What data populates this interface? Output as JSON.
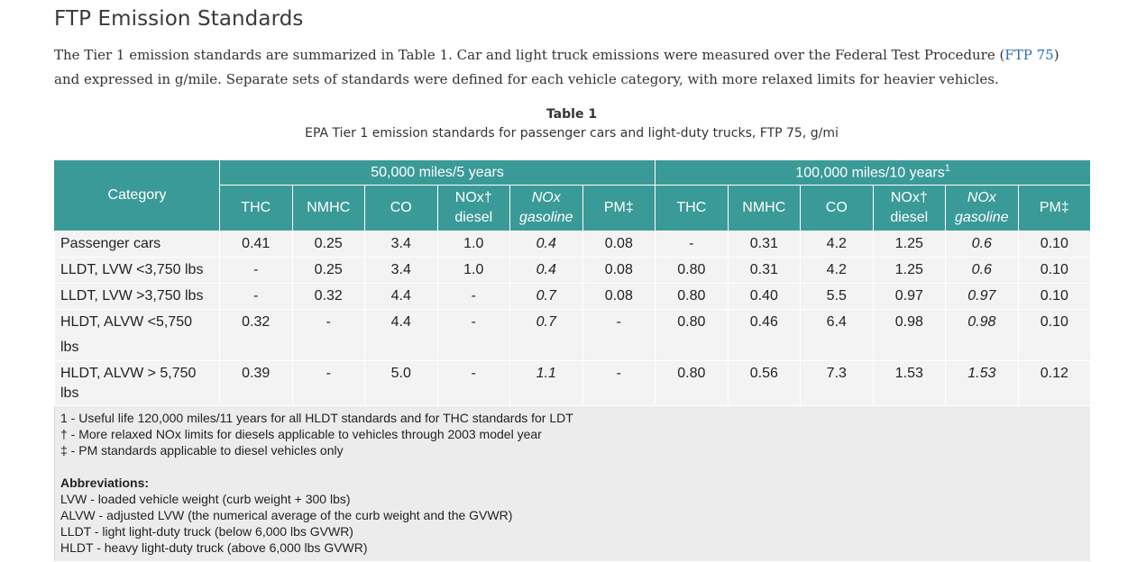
{
  "heading": "FTP Emission Standards",
  "intro": {
    "text_before": "The Tier 1 emission standards are summarized in Table 1. Car and light truck emissions were measured over the Federal Test Procedure (",
    "link": "FTP 75",
    "text_after": ") and expressed in g/mile. Separate sets of standards were defined for each vehicle category, with more relaxed limits for heavier vehicles."
  },
  "table_caption": {
    "title": "Table 1",
    "subtitle": "EPA Tier 1 emission standards for passenger cars and light-duty trucks, FTP 75, g/mi"
  },
  "table": {
    "category_header": "Category",
    "groups": [
      {
        "label": "50,000 miles/5 years",
        "sup": ""
      },
      {
        "label": "100,000 miles/10 years",
        "sup": "1"
      }
    ],
    "sub_headers": [
      {
        "line1": "THC",
        "line2": "",
        "italic": false
      },
      {
        "line1": "NMHC",
        "line2": "",
        "italic": false
      },
      {
        "line1": "CO",
        "line2": "",
        "italic": false
      },
      {
        "line1": "NOx†",
        "line2": "diesel",
        "italic": false
      },
      {
        "line1": "NOx",
        "line2": "gasoline",
        "italic": true
      },
      {
        "line1": "PM‡",
        "line2": "",
        "italic": false
      },
      {
        "line1": "THC",
        "line2": "",
        "italic": false
      },
      {
        "line1": "NMHC",
        "line2": "",
        "italic": false
      },
      {
        "line1": "CO",
        "line2": "",
        "italic": false
      },
      {
        "line1": "NOx†",
        "line2": "diesel",
        "italic": false
      },
      {
        "line1": "NOx",
        "line2": "gasoline",
        "italic": true
      },
      {
        "line1": "PM‡",
        "line2": "",
        "italic": false
      }
    ],
    "rows": [
      {
        "category": "Passenger cars",
        "values": [
          "0.41",
          "0.25",
          "3.4",
          "1.0",
          "0.4",
          "0.08",
          "-",
          "0.31",
          "4.2",
          "1.25",
          "0.6",
          "0.10"
        ]
      },
      {
        "category": "LLDT, LVW <3,750 lbs",
        "values": [
          "-",
          "0.25",
          "3.4",
          "1.0",
          "0.4",
          "0.08",
          "0.80",
          "0.31",
          "4.2",
          "1.25",
          "0.6",
          "0.10"
        ]
      },
      {
        "category": "LLDT, LVW >3,750 lbs",
        "values": [
          "-",
          "0.32",
          "4.4",
          "-",
          "0.7",
          "0.08",
          "0.80",
          "0.40",
          "5.5",
          "0.97",
          "0.97",
          "0.10"
        ]
      },
      {
        "category": "HLDT, ALVW <5,750 lbs",
        "values": [
          "0.32",
          "-",
          "4.4",
          "-",
          "0.7",
          "-",
          "0.80",
          "0.46",
          "6.4",
          "0.98",
          "0.98",
          "0.10"
        ]
      },
      {
        "category": "HLDT, ALVW > 5,750 lbs",
        "values": [
          "0.39",
          "-",
          "5.0",
          "-",
          "1.1",
          "-",
          "0.80",
          "0.56",
          "7.3",
          "1.53",
          "1.53",
          "0.12"
        ]
      }
    ],
    "italic_columns": [
      4,
      10
    ],
    "footnotes": [
      "1 - Useful life 120,000 miles/11 years for all HLDT standards and for THC standards for LDT",
      "† - More relaxed NOx limits for diesels applicable to vehicles through 2003 model year",
      "‡ - PM standards applicable to diesel vehicles only"
    ],
    "abbreviations_title": "Abbreviations:",
    "abbreviations": [
      "LVW - loaded vehicle weight (curb weight + 300 lbs)",
      "ALVW - adjusted LVW (the numerical average of the curb weight and the GVWR)",
      "LLDT - light light-duty truck (below 6,000 lbs GVWR)",
      "HLDT - heavy light-duty truck (above 6,000 lbs GVWR)"
    ]
  },
  "colors": {
    "header_bg": "#3a9a97",
    "cell_bg": "#f3f3f3",
    "notes_bg": "#ececec",
    "link": "#2a6fb0"
  }
}
